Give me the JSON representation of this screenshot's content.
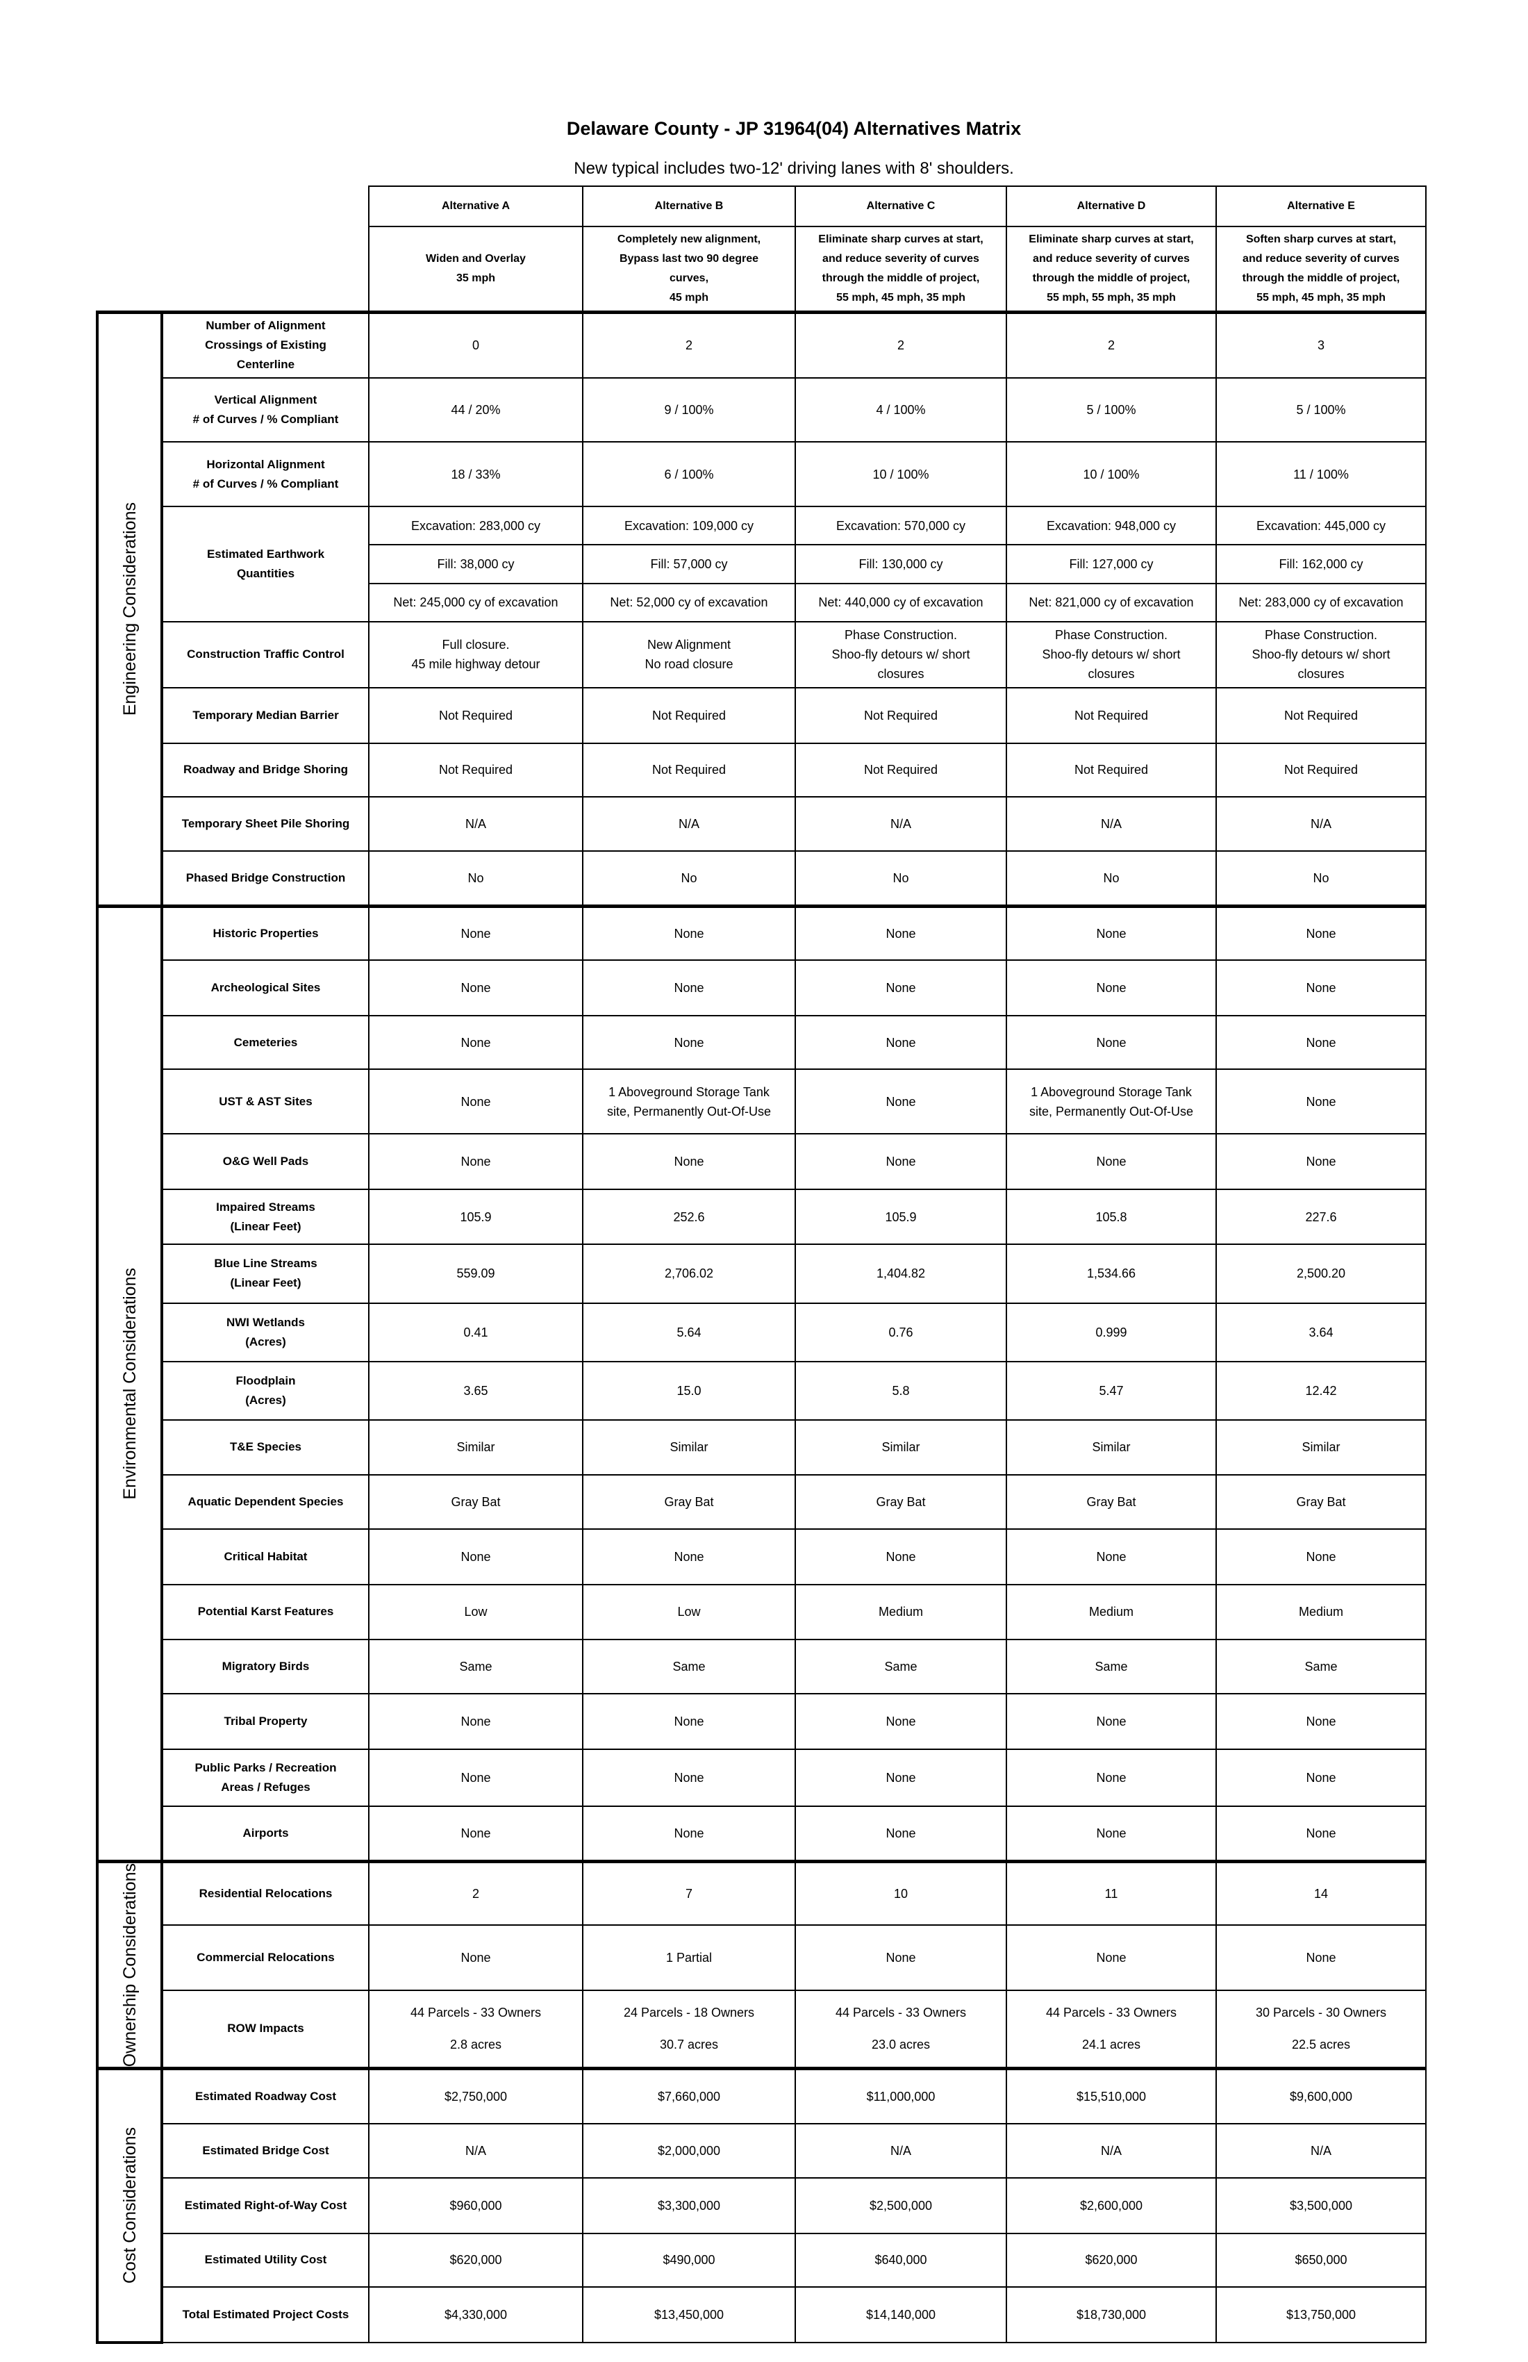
{
  "header": {
    "title": "Delaware County - JP 31964(04) Alternatives Matrix",
    "subtitle": "New typical includes two-12' driving lanes with 8' shoulders."
  },
  "table": {
    "columns": [
      "Alternative A",
      "Alternative B",
      "Alternative C",
      "Alternative D",
      "Alternative E"
    ],
    "descriptions": [
      "Widen and Overlay\n35 mph",
      "Completely new alignment,\nBypass last two 90 degree\ncurves,\n45 mph",
      "Eliminate sharp curves at start,\nand reduce severity of curves\nthrough the middle of project,\n55 mph, 45 mph, 35 mph",
      "Eliminate sharp curves at start,\nand reduce severity of curves\nthrough the middle of project,\n55 mph, 55 mph, 35 mph",
      "Soften sharp curves at start,\nand reduce severity of curves\nthrough the middle of project,\n55 mph, 45 mph, 35 mph"
    ],
    "groups": [
      {
        "name": "Engineering Considerations",
        "rows": [
          {
            "label": "Number of Alignment\nCrossings of Existing\nCenterline",
            "cells": [
              "0",
              "2",
              "2",
              "2",
              "3"
            ]
          },
          {
            "label": "Vertical Alignment\n# of Curves / % Compliant",
            "cells": [
              "44 / 20%",
              "9 / 100%",
              "4 / 100%",
              "5 / 100%",
              "5 / 100%"
            ]
          },
          {
            "label": "Horizontal Alignment\n# of Curves / % Compliant",
            "cells": [
              "18 / 33%",
              "6 / 100%",
              "10 / 100%",
              "10 / 100%",
              "11 / 100%"
            ]
          },
          {
            "label": "Estimated Earthwork\nQuantities",
            "cells": [
              [
                "Excavation: 283,000 cy",
                "Fill:  38,000 cy",
                "Net:  245,000 cy of excavation"
              ],
              [
                "Excavation: 109,000 cy",
                "Fill:  57,000 cy",
                "Net:  52,000 cy of excavation"
              ],
              [
                "Excavation: 570,000 cy",
                "Fill:  130,000 cy",
                "Net:  440,000 cy of excavation"
              ],
              [
                "Excavation: 948,000 cy",
                "Fill:  127,000 cy",
                "Net:  821,000 cy of excavation"
              ],
              [
                "Excavation: 445,000 cy",
                "Fill:  162,000 cy",
                "Net:  283,000 cy of excavation"
              ]
            ]
          },
          {
            "label": "Construction Traffic Control",
            "cells": [
              "Full closure.\n45 mile highway detour",
              "New Alignment\nNo road closure",
              "Phase Construction.\nShoo-fly detours w/ short\nclosures",
              "Phase Construction.\nShoo-fly detours w/ short\nclosures",
              "Phase Construction.\nShoo-fly detours w/ short\nclosures"
            ]
          },
          {
            "label": "Temporary Median Barrier",
            "cells": [
              "Not Required",
              "Not Required",
              "Not Required",
              "Not Required",
              "Not Required"
            ]
          },
          {
            "label": "Roadway and Bridge Shoring",
            "cells": [
              "Not Required",
              "Not Required",
              "Not Required",
              "Not Required",
              "Not Required"
            ]
          },
          {
            "label": "Temporary Sheet Pile Shoring",
            "cells": [
              "N/A",
              "N/A",
              "N/A",
              "N/A",
              "N/A"
            ]
          },
          {
            "label": "Phased Bridge Construction",
            "cells": [
              "No",
              "No",
              "No",
              "No",
              "No"
            ]
          }
        ]
      },
      {
        "name": "Environmental Considerations",
        "rows": [
          {
            "label": "Historic Properties",
            "cells": [
              "None",
              "None",
              "None",
              "None",
              "None"
            ]
          },
          {
            "label": "Archeological Sites",
            "cells": [
              "None",
              "None",
              "None",
              "None",
              "None"
            ]
          },
          {
            "label": "Cemeteries",
            "cells": [
              "None",
              "None",
              "None",
              "None",
              "None"
            ]
          },
          {
            "label": "UST & AST Sites",
            "cells": [
              "None",
              "1 Aboveground Storage Tank\nsite, Permanently Out-Of-Use",
              "None",
              "1 Aboveground Storage Tank\nsite, Permanently Out-Of-Use",
              "None"
            ]
          },
          {
            "label": "O&G Well Pads",
            "cells": [
              "None",
              "None",
              "None",
              "None",
              "None"
            ]
          },
          {
            "label": "Impaired Streams\n(Linear Feet)",
            "cells": [
              "105.9",
              "252.6",
              "105.9",
              "105.8",
              "227.6"
            ]
          },
          {
            "label": "Blue Line Streams\n(Linear Feet)",
            "cells": [
              "559.09",
              "2,706.02",
              "1,404.82",
              "1,534.66",
              "2,500.20"
            ]
          },
          {
            "label": "NWI Wetlands\n(Acres)",
            "cells": [
              "0.41",
              "5.64",
              "0.76",
              "0.999",
              "3.64"
            ]
          },
          {
            "label": "Floodplain\n(Acres)",
            "cells": [
              "3.65",
              "15.0",
              "5.8",
              "5.47",
              "12.42"
            ]
          },
          {
            "label": "T&E Species",
            "cells": [
              "Similar",
              "Similar",
              "Similar",
              "Similar",
              "Similar"
            ]
          },
          {
            "label": "Aquatic Dependent Species",
            "cells": [
              "Gray Bat",
              "Gray Bat",
              "Gray Bat",
              "Gray Bat",
              "Gray Bat"
            ]
          },
          {
            "label": "Critical Habitat",
            "cells": [
              "None",
              "None",
              "None",
              "None",
              "None"
            ]
          },
          {
            "label": "Potential Karst Features",
            "cells": [
              "Low",
              "Low",
              "Medium",
              "Medium",
              "Medium"
            ]
          },
          {
            "label": "Migratory Birds",
            "cells": [
              "Same",
              "Same",
              "Same",
              "Same",
              "Same"
            ]
          },
          {
            "label": "Tribal Property",
            "cells": [
              "None",
              "None",
              "None",
              "None",
              "None"
            ]
          },
          {
            "label": "Public Parks / Recreation\nAreas / Refuges",
            "cells": [
              "None",
              "None",
              "None",
              "None",
              "None"
            ]
          },
          {
            "label": "Airports",
            "cells": [
              "None",
              "None",
              "None",
              "None",
              "None"
            ]
          }
        ]
      },
      {
        "name": "Ownership Considerations",
        "rows": [
          {
            "label": "Residential Relocations",
            "cells": [
              "2",
              "7",
              "10",
              "11",
              "14"
            ]
          },
          {
            "label": "Commercial Relocations",
            "cells": [
              "None",
              "1 Partial",
              "None",
              "None",
              "None"
            ]
          },
          {
            "label": "ROW Impacts",
            "cells": [
              "44 Parcels - 33 Owners\n2.8 acres",
              "24 Parcels - 18 Owners\n30.7 acres",
              "44 Parcels - 33 Owners\n23.0 acres",
              "44 Parcels - 33 Owners\n24.1 acres",
              "30 Parcels - 30 Owners\n22.5 acres"
            ]
          }
        ]
      },
      {
        "name": "Cost Considerations",
        "rows": [
          {
            "label": "Estimated Roadway Cost",
            "cells": [
              "$2,750,000",
              "$7,660,000",
              "$11,000,000",
              "$15,510,000",
              "$9,600,000"
            ]
          },
          {
            "label": "Estimated Bridge Cost",
            "cells": [
              "N/A",
              "$2,000,000",
              "N/A",
              "N/A",
              "N/A"
            ]
          },
          {
            "label": "Estimated Right-of-Way Cost",
            "cells": [
              "$960,000",
              "$3,300,000",
              "$2,500,000",
              "$2,600,000",
              "$3,500,000"
            ]
          },
          {
            "label": "Estimated Utility Cost",
            "cells": [
              "$620,000",
              "$490,000",
              "$640,000",
              "$620,000",
              "$650,000"
            ]
          },
          {
            "label": "Total Estimated Project Costs",
            "cells": [
              "$4,330,000",
              "$13,450,000",
              "$14,140,000",
              "$18,730,000",
              "$13,750,000"
            ]
          }
        ]
      }
    ]
  }
}
